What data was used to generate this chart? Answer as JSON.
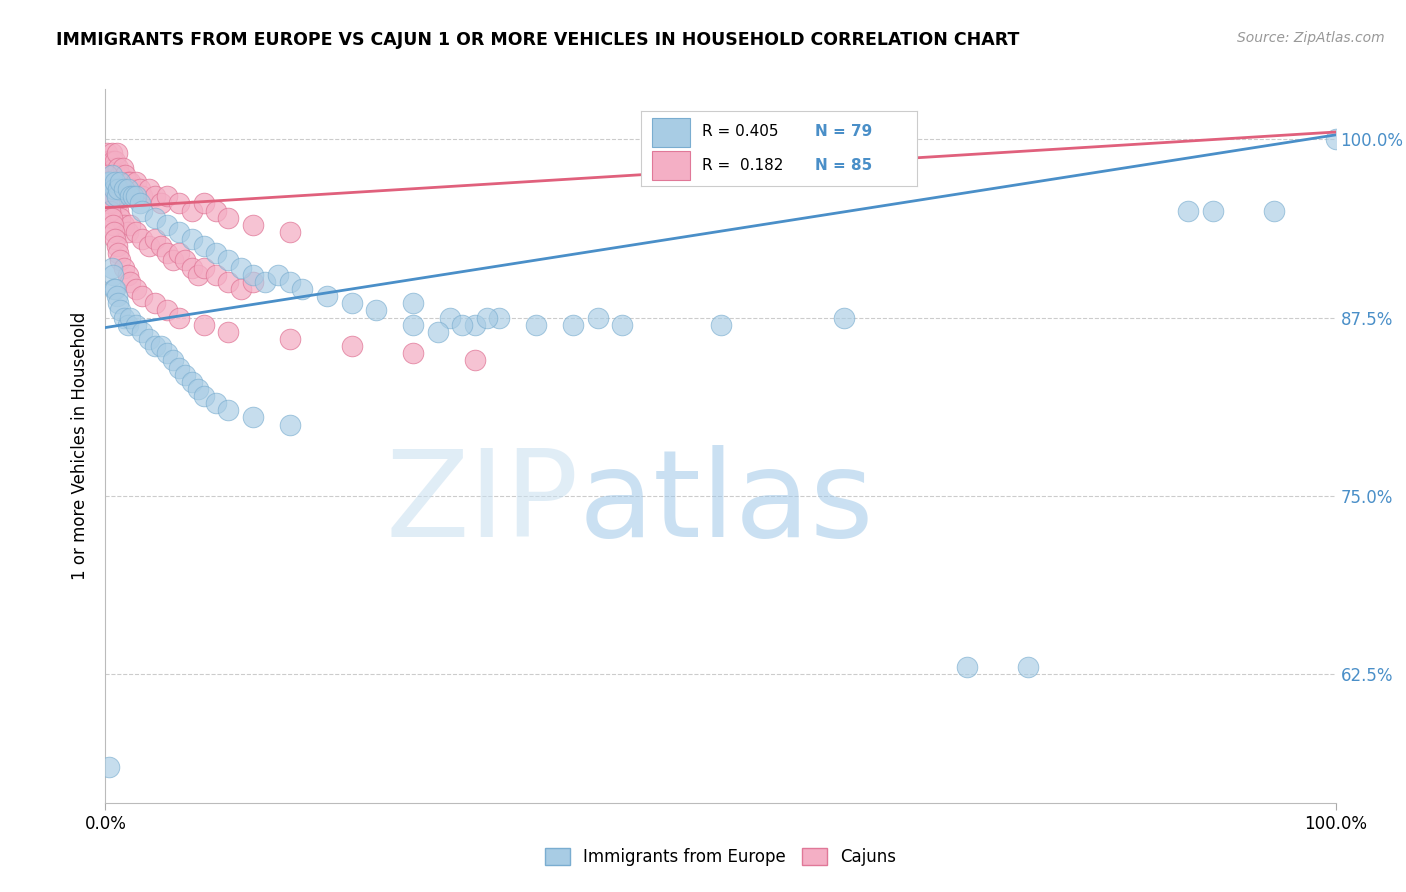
{
  "title": "IMMIGRANTS FROM EUROPE VS CAJUN 1 OR MORE VEHICLES IN HOUSEHOLD CORRELATION CHART",
  "source": "Source: ZipAtlas.com",
  "ylabel": "1 or more Vehicles in Household",
  "legend_label1": "Immigrants from Europe",
  "legend_label2": "Cajuns",
  "R1": 0.405,
  "N1": 79,
  "R2": 0.182,
  "N2": 85,
  "color_blue": "#a8cce4",
  "color_pink": "#f4afc5",
  "color_blue_edge": "#7aadd0",
  "color_pink_edge": "#e07898",
  "color_blue_line": "#4a8fc8",
  "color_pink_line": "#e0607c",
  "color_axis_right": "#4a8fc8",
  "grid_color": "#cccccc",
  "xmin": 0.0,
  "xmax": 1.0,
  "ymin": 0.535,
  "ymax": 1.035,
  "ytick_vals": [
    0.625,
    0.75,
    0.875,
    1.0
  ],
  "ytick_labels": [
    "62.5%",
    "75.0%",
    "87.5%",
    "100.0%"
  ],
  "blue_trend_x0": 0.0,
  "blue_trend_y0": 0.868,
  "blue_trend_x1": 1.0,
  "blue_trend_y1": 1.003,
  "pink_trend_x0": 0.0,
  "pink_trend_y0": 0.952,
  "pink_trend_x1": 1.0,
  "pink_trend_y1": 1.005,
  "blue_x": [
    0.003,
    0.004,
    0.005,
    0.006,
    0.007,
    0.008,
    0.009,
    0.01,
    0.012,
    0.015,
    0.018,
    0.02,
    0.022,
    0.025,
    0.028,
    0.03,
    0.04,
    0.05,
    0.06,
    0.07,
    0.08,
    0.09,
    0.1,
    0.11,
    0.12,
    0.13,
    0.14,
    0.15,
    0.16,
    0.18,
    0.2,
    0.22,
    0.25,
    0.28,
    0.3,
    0.32,
    0.35,
    0.38,
    0.4,
    0.42,
    0.25,
    0.27,
    0.29,
    0.31,
    0.005,
    0.006,
    0.007,
    0.008,
    0.009,
    0.01,
    0.012,
    0.015,
    0.018,
    0.02,
    0.025,
    0.03,
    0.035,
    0.04,
    0.045,
    0.05,
    0.055,
    0.06,
    0.065,
    0.07,
    0.075,
    0.08,
    0.09,
    0.1,
    0.12,
    0.15,
    0.5,
    0.6,
    0.7,
    0.75,
    0.88,
    0.9,
    0.95,
    1.0,
    0.003
  ],
  "blue_y": [
    0.97,
    0.97,
    0.975,
    0.96,
    0.965,
    0.97,
    0.96,
    0.965,
    0.97,
    0.965,
    0.965,
    0.96,
    0.96,
    0.96,
    0.955,
    0.95,
    0.945,
    0.94,
    0.935,
    0.93,
    0.925,
    0.92,
    0.915,
    0.91,
    0.905,
    0.9,
    0.905,
    0.9,
    0.895,
    0.89,
    0.885,
    0.88,
    0.885,
    0.875,
    0.87,
    0.875,
    0.87,
    0.87,
    0.875,
    0.87,
    0.87,
    0.865,
    0.87,
    0.875,
    0.91,
    0.905,
    0.895,
    0.895,
    0.89,
    0.885,
    0.88,
    0.875,
    0.87,
    0.875,
    0.87,
    0.865,
    0.86,
    0.855,
    0.855,
    0.85,
    0.845,
    0.84,
    0.835,
    0.83,
    0.825,
    0.82,
    0.815,
    0.81,
    0.805,
    0.8,
    0.87,
    0.875,
    0.63,
    0.63,
    0.95,
    0.95,
    0.95,
    1.0,
    0.56
  ],
  "pink_x": [
    0.001,
    0.002,
    0.003,
    0.004,
    0.005,
    0.006,
    0.007,
    0.008,
    0.009,
    0.01,
    0.012,
    0.014,
    0.016,
    0.018,
    0.02,
    0.022,
    0.025,
    0.028,
    0.03,
    0.035,
    0.04,
    0.045,
    0.05,
    0.06,
    0.07,
    0.08,
    0.09,
    0.1,
    0.12,
    0.15,
    0.001,
    0.002,
    0.003,
    0.004,
    0.005,
    0.006,
    0.007,
    0.008,
    0.009,
    0.01,
    0.012,
    0.015,
    0.018,
    0.02,
    0.025,
    0.03,
    0.035,
    0.04,
    0.045,
    0.05,
    0.055,
    0.06,
    0.065,
    0.07,
    0.075,
    0.08,
    0.09,
    0.1,
    0.11,
    0.12,
    0.002,
    0.003,
    0.004,
    0.005,
    0.006,
    0.007,
    0.008,
    0.009,
    0.01,
    0.012,
    0.015,
    0.018,
    0.02,
    0.025,
    0.03,
    0.04,
    0.05,
    0.06,
    0.08,
    0.1,
    0.15,
    0.2,
    0.25,
    0.3,
    0.001
  ],
  "pink_y": [
    0.99,
    0.985,
    0.98,
    0.985,
    0.99,
    0.985,
    0.98,
    0.985,
    0.99,
    0.98,
    0.975,
    0.98,
    0.975,
    0.97,
    0.97,
    0.965,
    0.97,
    0.965,
    0.96,
    0.965,
    0.96,
    0.955,
    0.96,
    0.955,
    0.95,
    0.955,
    0.95,
    0.945,
    0.94,
    0.935,
    0.975,
    0.97,
    0.965,
    0.96,
    0.965,
    0.96,
    0.955,
    0.96,
    0.955,
    0.95,
    0.945,
    0.94,
    0.935,
    0.94,
    0.935,
    0.93,
    0.925,
    0.93,
    0.925,
    0.92,
    0.915,
    0.92,
    0.915,
    0.91,
    0.905,
    0.91,
    0.905,
    0.9,
    0.895,
    0.9,
    0.96,
    0.955,
    0.95,
    0.945,
    0.94,
    0.935,
    0.93,
    0.925,
    0.92,
    0.915,
    0.91,
    0.905,
    0.9,
    0.895,
    0.89,
    0.885,
    0.88,
    0.875,
    0.87,
    0.865,
    0.86,
    0.855,
    0.85,
    0.845,
    0.97
  ]
}
